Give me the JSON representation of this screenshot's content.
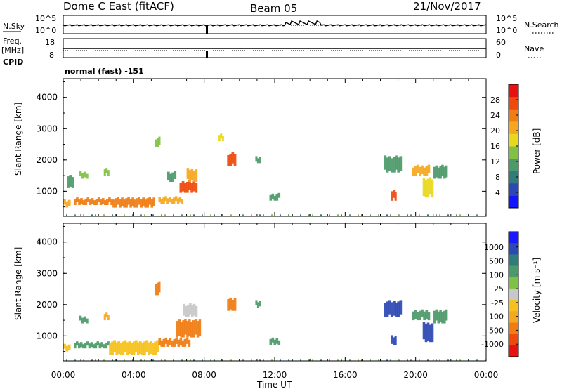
{
  "header": {
    "station": "Dome C East (fitACF)",
    "beam": "Beam 05",
    "date": "21/Nov/2017"
  },
  "status_panel": {
    "nsky_label": "N.Sky",
    "nsky_ticks": [
      "10^5",
      "10^0"
    ],
    "nsearch_label": "N.Search",
    "nsearch_ticks": [
      "10^5",
      "10^0"
    ],
    "freq_label": "Freq.",
    "freq_unit": "[MHz]",
    "freq_ticks": [
      "18",
      "8"
    ],
    "nave_label": "Nave",
    "nave_ticks": [
      "60",
      "0"
    ],
    "cpid_label": "CPID",
    "cpid_value": "normal (fast) -151"
  },
  "x_axis": {
    "label": "Time UT",
    "ticks": [
      "00:00",
      "04:00",
      "08:00",
      "12:00",
      "16:00",
      "20:00",
      "00:00"
    ]
  },
  "colors": {
    "power": [
      "#1414ff",
      "#2b48b4",
      "#2e7d7a",
      "#4c9a6a",
      "#7fc243",
      "#e8d81c",
      "#f5a81e",
      "#f07c12",
      "#ee4a0c",
      "#e81010"
    ],
    "velocity": [
      "#1a1aff",
      "#2b48b4",
      "#2e7d7a",
      "#4c9a6a",
      "#7fc243",
      "#c8c8c8",
      "#f5c11a",
      "#f5a81e",
      "#f07c12",
      "#ee4a0c",
      "#e81010"
    ]
  },
  "chart_data": [
    {
      "type": "heatmap",
      "name": "power",
      "ylabel": "Slant Range [km]",
      "ylim": [
        200,
        4600
      ],
      "yticks": [
        "1000",
        "2000",
        "3000",
        "4000"
      ],
      "xlim_hours": [
        0,
        24
      ],
      "colorbar": {
        "label": "Power [dB]",
        "range": [
          0,
          32
        ],
        "tick_labels": [
          "4",
          "8",
          "12",
          "16",
          "20",
          "24",
          "28"
        ]
      },
      "patches": [
        {
          "t0": 0.0,
          "t1": 0.4,
          "r0": 480,
          "r1": 700,
          "level": 6
        },
        {
          "t0": 0.6,
          "t1": 2.8,
          "r0": 560,
          "r1": 760,
          "level": 7
        },
        {
          "t0": 2.8,
          "t1": 5.2,
          "r0": 480,
          "r1": 780,
          "level": 7
        },
        {
          "t0": 5.4,
          "t1": 6.8,
          "r0": 600,
          "r1": 800,
          "level": 6
        },
        {
          "t0": 0.2,
          "t1": 0.6,
          "r0": 1100,
          "r1": 1500,
          "level": 3
        },
        {
          "t0": 0.9,
          "t1": 1.4,
          "r0": 1400,
          "r1": 1600,
          "level": 4
        },
        {
          "t0": 2.3,
          "t1": 2.6,
          "r0": 1500,
          "r1": 1700,
          "level": 4
        },
        {
          "t0": 5.2,
          "t1": 5.5,
          "r0": 2400,
          "r1": 2700,
          "level": 4
        },
        {
          "t0": 5.9,
          "t1": 6.4,
          "r0": 1300,
          "r1": 1600,
          "level": 3
        },
        {
          "t0": 6.6,
          "t1": 7.6,
          "r0": 950,
          "r1": 1300,
          "level": 8
        },
        {
          "t0": 7.0,
          "t1": 7.6,
          "r0": 1300,
          "r1": 1700,
          "level": 6
        },
        {
          "t0": 8.8,
          "t1": 9.1,
          "r0": 2600,
          "r1": 2800,
          "level": 5
        },
        {
          "t0": 9.3,
          "t1": 9.8,
          "r0": 1800,
          "r1": 2200,
          "level": 8
        },
        {
          "t0": 10.9,
          "t1": 11.2,
          "r0": 1900,
          "r1": 2100,
          "level": 3
        },
        {
          "t0": 11.7,
          "t1": 12.3,
          "r0": 700,
          "r1": 900,
          "level": 3
        },
        {
          "t0": 18.2,
          "t1": 19.2,
          "r0": 1600,
          "r1": 2100,
          "level": 3
        },
        {
          "t0": 18.6,
          "t1": 18.9,
          "r0": 700,
          "r1": 1000,
          "level": 8
        },
        {
          "t0": 19.8,
          "t1": 20.8,
          "r0": 1500,
          "r1": 1800,
          "level": 6
        },
        {
          "t0": 20.4,
          "t1": 21.0,
          "r0": 800,
          "r1": 1400,
          "level": 5
        },
        {
          "t0": 21.0,
          "t1": 21.8,
          "r0": 1400,
          "r1": 1800,
          "level": 3
        }
      ]
    },
    {
      "type": "heatmap",
      "name": "velocity",
      "ylabel": "Slant Range [km]",
      "ylim": [
        200,
        4600
      ],
      "yticks": [
        "1000",
        "2000",
        "3000",
        "4000"
      ],
      "xlim_hours": [
        0,
        24
      ],
      "colorbar": {
        "label": "Velocity [m s⁻¹]",
        "tick_labels": [
          "1000",
          "500",
          "100",
          "25",
          "-25",
          "-100",
          "-500",
          "-1000"
        ]
      },
      "patches": [
        {
          "t0": 0.0,
          "t1": 0.4,
          "r0": 500,
          "r1": 700,
          "level": 6
        },
        {
          "t0": 0.6,
          "t1": 2.6,
          "r0": 600,
          "r1": 780,
          "level": 3
        },
        {
          "t0": 2.6,
          "t1": 5.4,
          "r0": 380,
          "r1": 820,
          "level": 6
        },
        {
          "t0": 5.4,
          "t1": 7.2,
          "r0": 650,
          "r1": 900,
          "level": 8
        },
        {
          "t0": 6.4,
          "t1": 7.8,
          "r0": 950,
          "r1": 1500,
          "level": 8
        },
        {
          "t0": 0.9,
          "t1": 1.4,
          "r0": 1400,
          "r1": 1600,
          "level": 3
        },
        {
          "t0": 2.3,
          "t1": 2.6,
          "r0": 1500,
          "r1": 1700,
          "level": 7
        },
        {
          "t0": 5.2,
          "t1": 5.5,
          "r0": 2300,
          "r1": 2700,
          "level": 8
        },
        {
          "t0": 6.8,
          "t1": 7.6,
          "r0": 1600,
          "r1": 2000,
          "level": 5
        },
        {
          "t0": 9.3,
          "t1": 9.8,
          "r0": 1800,
          "r1": 2200,
          "level": 8
        },
        {
          "t0": 10.9,
          "t1": 11.2,
          "r0": 1900,
          "r1": 2100,
          "level": 3
        },
        {
          "t0": 11.7,
          "t1": 12.3,
          "r0": 700,
          "r1": 900,
          "level": 3
        },
        {
          "t0": 18.2,
          "t1": 19.2,
          "r0": 1600,
          "r1": 2100,
          "level": 1
        },
        {
          "t0": 18.6,
          "t1": 18.9,
          "r0": 700,
          "r1": 1000,
          "level": 1
        },
        {
          "t0": 19.8,
          "t1": 20.8,
          "r0": 1500,
          "r1": 1800,
          "level": 3
        },
        {
          "t0": 20.4,
          "t1": 21.0,
          "r0": 800,
          "r1": 1400,
          "level": 1
        },
        {
          "t0": 21.0,
          "t1": 21.8,
          "r0": 1400,
          "r1": 1800,
          "level": 3
        }
      ]
    }
  ]
}
